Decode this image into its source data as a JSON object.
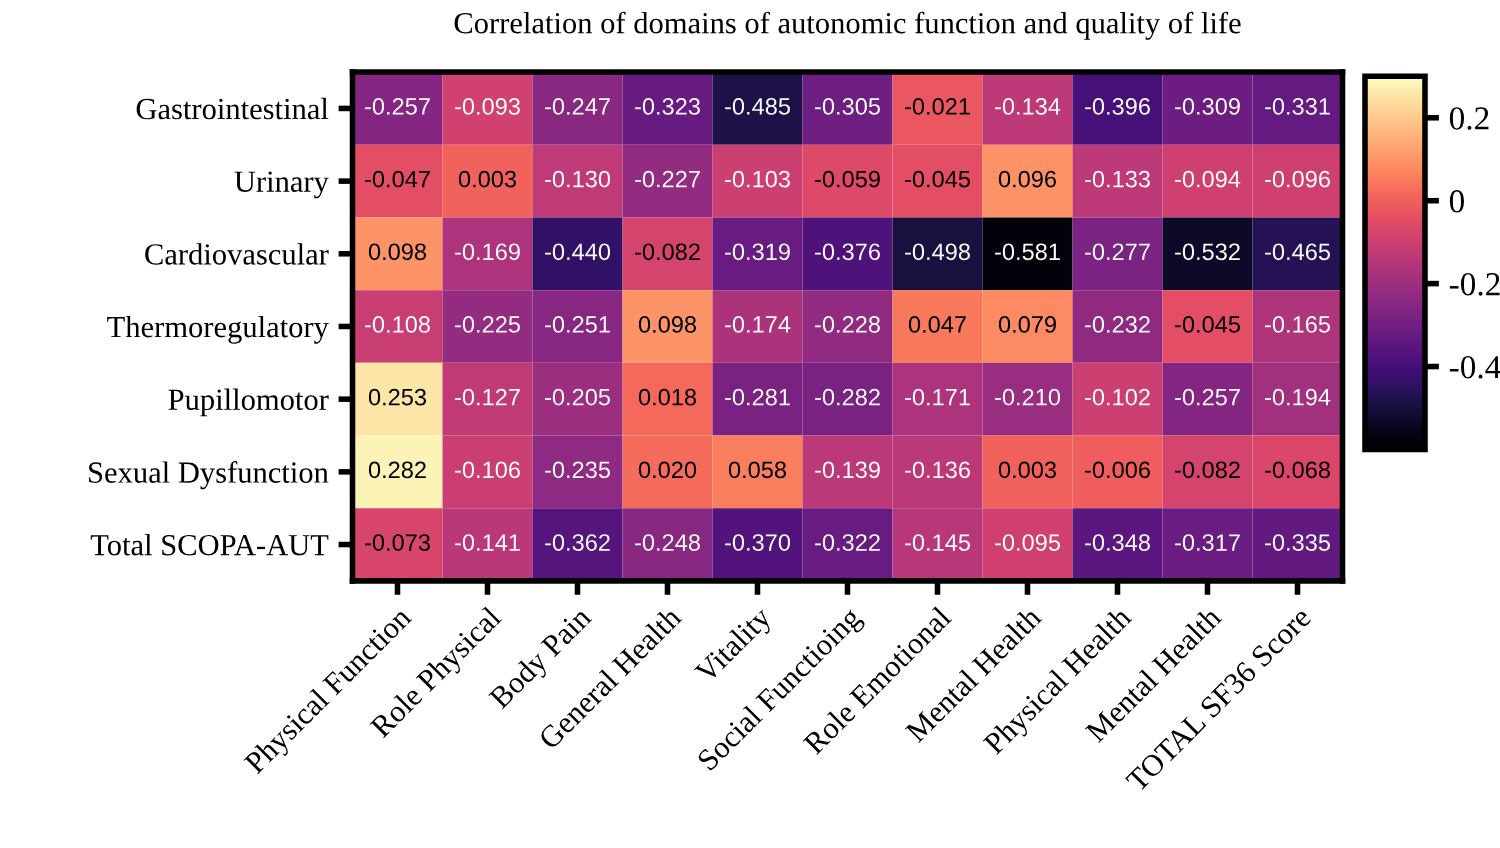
{
  "chart_data": {
    "type": "heatmap",
    "title": "Correlation of domains of autonomic function and quality of life",
    "categories": [
      "Physical Function",
      "Role Physical",
      "Body Pain",
      "General Health",
      "Vitality",
      "Social Functioing",
      "Role Emotional",
      "Mental Health",
      "Physical Health",
      "Mental Health",
      "TOTAL SF36 Score"
    ],
    "y_categories": [
      "Gastrointestinal",
      "Urinary",
      "Cardiovascular",
      "Thermoregulatory",
      "Pupillomotor",
      "Sexual Dysfunction",
      "Total SCOPA-AUT"
    ],
    "cells": [
      [
        -0.257,
        -0.093,
        -0.247,
        -0.323,
        -0.485,
        -0.305,
        -0.021,
        -0.134,
        -0.396,
        -0.309,
        -0.331
      ],
      [
        -0.047,
        0.003,
        -0.13,
        -0.227,
        -0.103,
        -0.059,
        -0.045,
        0.096,
        -0.133,
        -0.094,
        -0.096
      ],
      [
        0.098,
        -0.169,
        -0.44,
        -0.082,
        -0.319,
        -0.376,
        -0.498,
        -0.581,
        -0.277,
        -0.532,
        -0.465
      ],
      [
        -0.108,
        -0.225,
        -0.251,
        0.098,
        -0.174,
        -0.228,
        0.047,
        0.079,
        -0.232,
        -0.045,
        -0.165
      ],
      [
        0.253,
        -0.127,
        -0.205,
        0.018,
        -0.281,
        -0.282,
        -0.171,
        -0.21,
        -0.102,
        -0.257,
        -0.194
      ],
      [
        0.282,
        -0.106,
        -0.235,
        0.02,
        0.058,
        -0.139,
        -0.136,
        0.003,
        -0.006,
        -0.082,
        -0.068
      ],
      [
        -0.073,
        -0.141,
        -0.362,
        -0.248,
        -0.37,
        -0.322,
        -0.145,
        -0.095,
        -0.348,
        -0.317,
        -0.335
      ]
    ],
    "cell_labels": [
      [
        "-0.257",
        "-0.093",
        "-0.247",
        "-0.323",
        "-0.485",
        "-0.305",
        "-0.021",
        "-0.134",
        "-0.396",
        "-0.309",
        "-0.331"
      ],
      [
        "-0.047",
        "0.003",
        "-0.130",
        "-0.227",
        "-0.103",
        "-0.059",
        "-0.045",
        "0.096",
        "-0.133",
        "-0.094",
        "-0.096"
      ],
      [
        "0.098",
        "-0.169",
        "-0.440",
        "-0.082",
        "-0.319",
        "-0.376",
        "-0.498",
        "-0.581",
        "-0.277",
        "-0.532",
        "-0.465"
      ],
      [
        "-0.108",
        "-0.225",
        "-0.251",
        "0.098",
        "-0.174",
        "-0.228",
        "0.047",
        "0.079",
        "-0.232",
        "-0.045",
        "-0.165"
      ],
      [
        "0.253",
        "-0.127",
        "-0.205",
        "0.018",
        "-0.281",
        "-0.282",
        "-0.171",
        "-0.210",
        "-0.102",
        "-0.257",
        "-0.194"
      ],
      [
        "0.282",
        "-0.106",
        "-0.235",
        "0.020",
        "0.058",
        "-0.139",
        "-0.136",
        "0.003",
        "-0.006",
        "-0.082",
        "-0.068"
      ],
      [
        "-0.073",
        "-0.141",
        "-0.362",
        "-0.248",
        "-0.370",
        "-0.322",
        "-0.145",
        "-0.095",
        "-0.348",
        "-0.317",
        "-0.335"
      ]
    ],
    "data_labels": true,
    "clim": [
      -0.6,
      0.3
    ],
    "cticks": [
      {
        "value": -0.4,
        "label": "-0.4"
      },
      {
        "value": -0.2,
        "label": "-0.2"
      },
      0,
      0.2
    ]
  }
}
